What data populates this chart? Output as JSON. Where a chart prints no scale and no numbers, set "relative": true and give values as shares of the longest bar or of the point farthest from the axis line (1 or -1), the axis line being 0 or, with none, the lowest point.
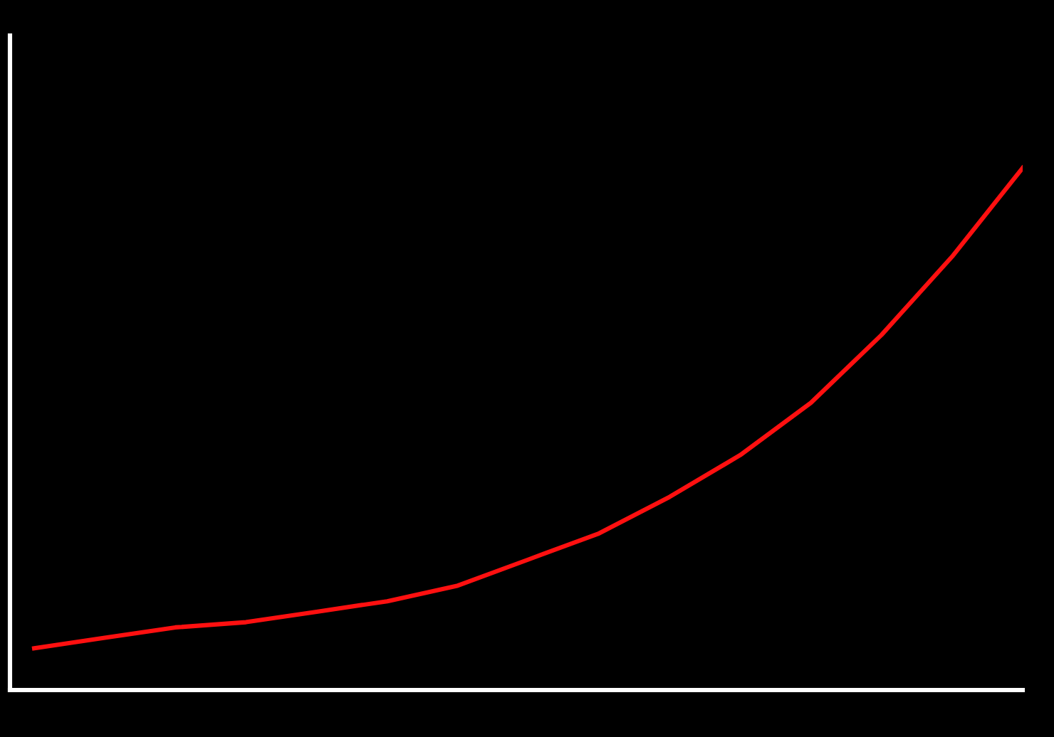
{
  "chart_data": {
    "type": "line",
    "relative": true,
    "categories": [
      null,
      null,
      null,
      null,
      null,
      null,
      null,
      null,
      null,
      null,
      null,
      null,
      null,
      null,
      null
    ],
    "series": [
      {
        "color": "#ff1010",
        "values": [
          0.08,
          0.1,
          0.12,
          0.13,
          0.15,
          0.17,
          0.2,
          0.25,
          0.3,
          0.37,
          0.45,
          0.55,
          0.68,
          0.83,
          1
        ]
      }
    ],
    "legend": false,
    "marker": "none",
    "line_style": "solid",
    "tick_labels": false
  }
}
